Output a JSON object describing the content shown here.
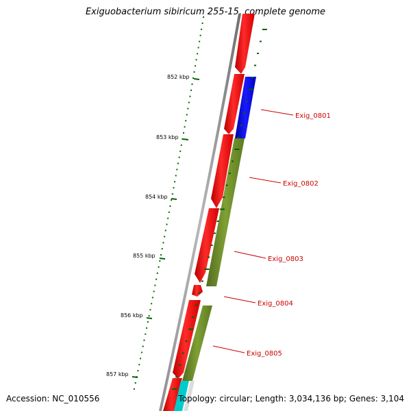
{
  "title": "Exiguobacterium sibiricum 255-15, complete genome",
  "footer": {
    "accession": "Accession: NC_010556",
    "summary": "Topology: circular; Length: 3,034,136 bp; Genes: 3,104"
  },
  "kbp_ticks": [
    "852 kbp",
    "853 kbp",
    "854 kbp",
    "855 kbp",
    "856 kbp",
    "857 kbp"
  ],
  "gene_labels": [
    "Exig_0801",
    "Exig_0802",
    "Exig_0803",
    "Exig_0804",
    "Exig_0805"
  ],
  "colors": {
    "forward_strand": "#ff0000",
    "reverse_strand_blue": "#0000ee",
    "reverse_strand_olive": "#6b8e23",
    "tick_green": "#006400",
    "backbone": "#808080",
    "label_red": "#cc0000",
    "cyan": "#00cccc"
  }
}
